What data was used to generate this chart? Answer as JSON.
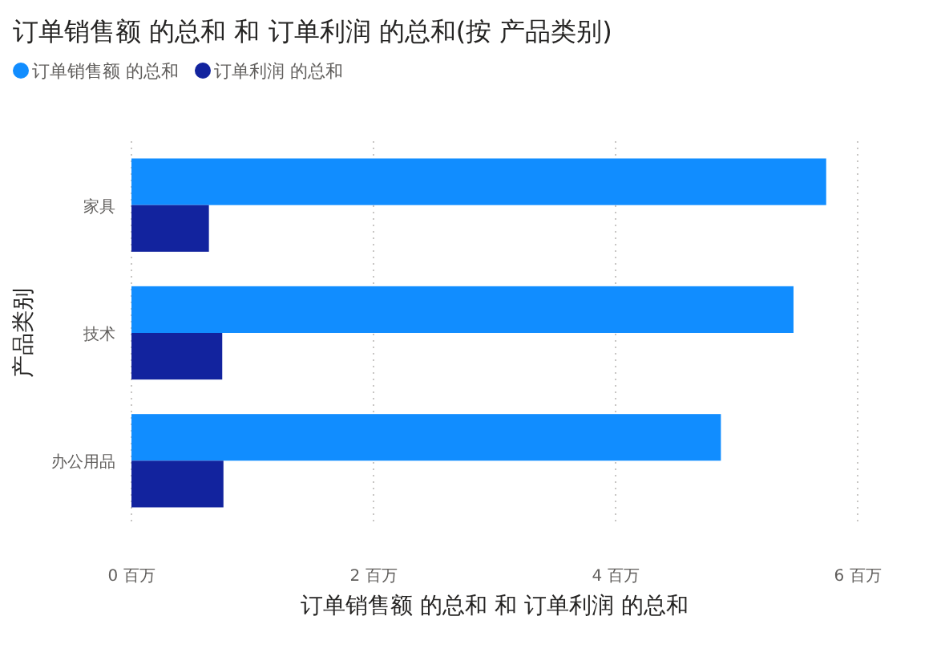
{
  "chart_data": {
    "type": "bar",
    "orientation": "horizontal",
    "title": "订单销售额 的总和 和 订单利润 的总和(按 产品类别)",
    "xlabel": "订单销售额 的总和 和 订单利润 的总和",
    "ylabel": "产品类别",
    "categories": [
      "家具",
      "技术",
      "办公用品"
    ],
    "series": [
      {
        "name": "订单销售额 的总和",
        "color": "#118dff",
        "values": [
          5.74,
          5.47,
          4.87
        ]
      },
      {
        "name": "订单利润 的总和",
        "color": "#12239e",
        "values": [
          0.64,
          0.75,
          0.76
        ]
      }
    ],
    "xlim": [
      0,
      6
    ],
    "xticks": [
      {
        "value": 0,
        "label": "0 百万"
      },
      {
        "value": 2,
        "label": "2 百万"
      },
      {
        "value": 4,
        "label": "4 百万"
      },
      {
        "value": 6,
        "label": "6 百万"
      }
    ],
    "grid": "x",
    "legend": "top left"
  }
}
